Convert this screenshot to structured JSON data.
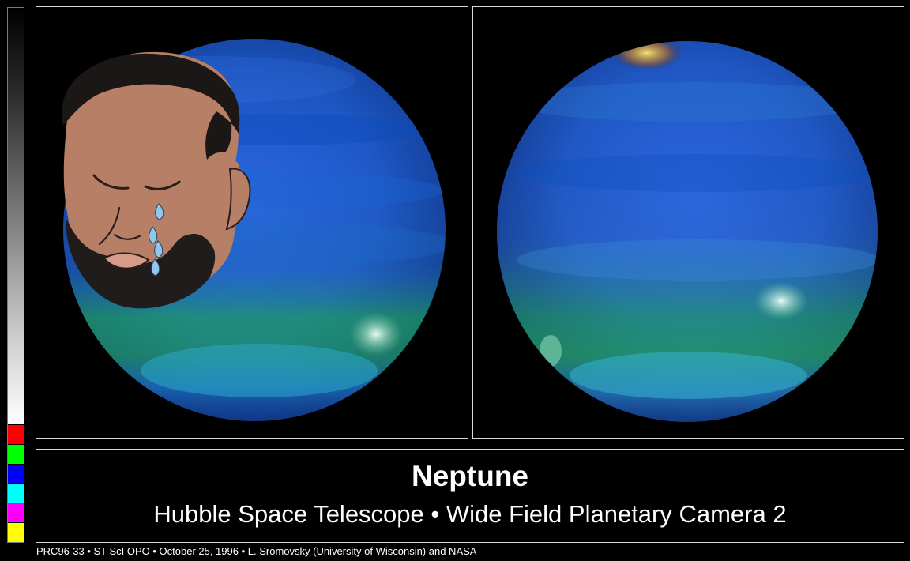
{
  "colorbar": {
    "swatches": [
      "#ff0000",
      "#00ff00",
      "#0000ff",
      "#00ffff",
      "#ff00ff",
      "#ffff00"
    ]
  },
  "caption": {
    "title": "Neptune",
    "subtitle": "Hubble Space Telescope • Wide Field Planetary Camera 2"
  },
  "credit": "PRC96-33 • ST ScI OPO • October 25, 1996 • L. Sromovsky (University of Wisconsin) and NASA",
  "colors": {
    "planet_blue": "#1d58c4",
    "planet_band_green": "#1fb546",
    "planet_highlight": "#e9fff3",
    "frame": "#d8d8d8"
  }
}
